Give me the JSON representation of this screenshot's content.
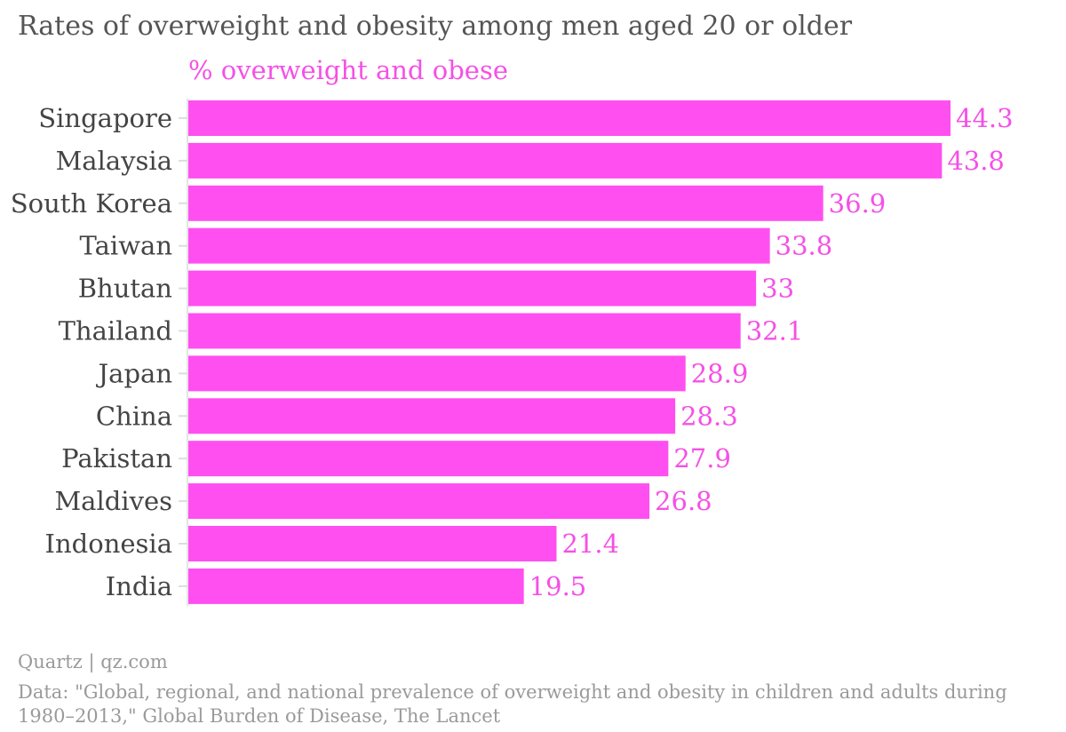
{
  "chart_data": {
    "type": "bar",
    "orientation": "horizontal",
    "title": "Rates of overweight and obesity among men aged 20 or older",
    "series_label": "% overweight and obese",
    "categories": [
      "Singapore",
      "Malaysia",
      "South Korea",
      "Taiwan",
      "Bhutan",
      "Thailand",
      "Japan",
      "China",
      "Pakistan",
      "Maldives",
      "Indonesia",
      "India"
    ],
    "values": [
      44.3,
      43.8,
      36.9,
      33.8,
      33,
      32.1,
      28.9,
      28.3,
      27.9,
      26.8,
      21.4,
      19.5
    ],
    "value_labels": [
      "44.3",
      "43.8",
      "36.9",
      "33.8",
      "33",
      "32.1",
      "28.9",
      "28.3",
      "27.9",
      "26.8",
      "21.4",
      "19.5"
    ],
    "xlim": [
      0,
      44.3
    ],
    "grid": false,
    "bar_color": "#ff4ff0",
    "label_color": "#f550e6",
    "category_label_color": "#444444"
  },
  "footer": {
    "source": "Quartz | qz.com",
    "note_line1": "Data: \"Global, regional, and national prevalence of overweight and obesity in children and adults during",
    "note_line2": "1980–2013,\" Global Burden of Disease, The Lancet"
  }
}
